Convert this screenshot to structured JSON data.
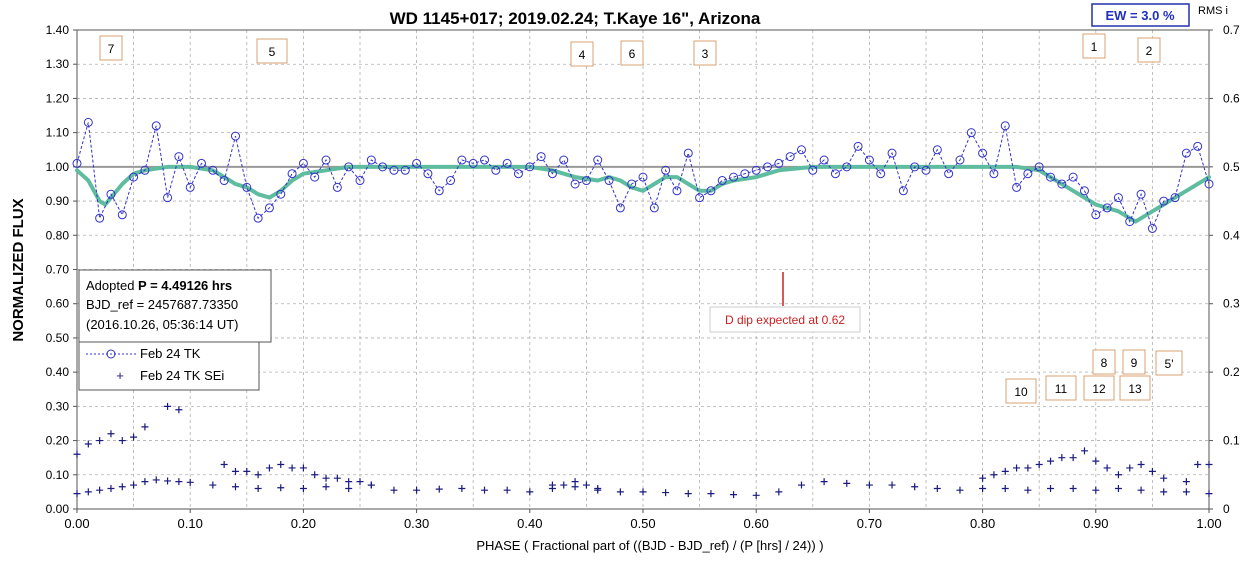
{
  "chart_data": {
    "type": "scatter",
    "title": "WD 1145+017; 2019.02.24; T.Kaye 16\", Arizona",
    "xlabel": "PHASE ( Fractional part of ((BJD - BJD_ref) / (P [hrs] / 24)) )",
    "ylabel": "NORMALIZED FLUX",
    "y2label": "RMS i",
    "xlim": [
      0,
      1
    ],
    "ylim": [
      0,
      1.4
    ],
    "y2lim": [
      0,
      0.7
    ],
    "grid": true,
    "x_ticks": [
      "0.00",
      "0.10",
      "0.20",
      "0.30",
      "0.40",
      "0.50",
      "0.60",
      "0.70",
      "0.80",
      "0.90",
      "1.00"
    ],
    "y_ticks": [
      "0.00",
      "0.10",
      "0.20",
      "0.30",
      "0.40",
      "0.50",
      "0.60",
      "0.70",
      "0.80",
      "0.90",
      "1.00",
      "1.10",
      "1.20",
      "1.30",
      "1.40"
    ],
    "y2_ticks": [
      "0",
      "0.1",
      "0.2",
      "0.3",
      "0.4",
      "0.5",
      "0.6",
      "0.7"
    ],
    "ew_label": "EW =  3.0 %",
    "info_box": {
      "line1_prefix": "Adopted ",
      "line1_bold": "P = 4.49126 hrs",
      "line2": "BJD_ref = 2457687.73350",
      "line3": "(2016.10.26, 05:36:14 UT)"
    },
    "annotation": {
      "text": "D dip expected at 0.62",
      "x": 0.62
    },
    "dip_labels_upper": [
      "7",
      "5",
      "4",
      "6",
      "3",
      "1",
      "2"
    ],
    "dip_labels_lower": [
      "8",
      "9",
      "5'",
      "10",
      "11",
      "12",
      "13"
    ],
    "series": [
      {
        "name": "Feb 24 TK",
        "color": "#3333cc",
        "marker": "circle",
        "x": [
          0.0,
          0.01,
          0.02,
          0.03,
          0.04,
          0.05,
          0.06,
          0.07,
          0.08,
          0.09,
          0.1,
          0.11,
          0.12,
          0.13,
          0.14,
          0.15,
          0.16,
          0.17,
          0.18,
          0.19,
          0.2,
          0.21,
          0.22,
          0.23,
          0.24,
          0.25,
          0.26,
          0.27,
          0.28,
          0.29,
          0.3,
          0.31,
          0.32,
          0.33,
          0.34,
          0.35,
          0.36,
          0.37,
          0.38,
          0.39,
          0.4,
          0.41,
          0.42,
          0.43,
          0.44,
          0.45,
          0.46,
          0.47,
          0.48,
          0.49,
          0.5,
          0.51,
          0.52,
          0.53,
          0.54,
          0.55,
          0.56,
          0.57,
          0.58,
          0.59,
          0.6,
          0.61,
          0.62,
          0.63,
          0.64,
          0.65,
          0.66,
          0.67,
          0.68,
          0.69,
          0.7,
          0.71,
          0.72,
          0.73,
          0.74,
          0.75,
          0.76,
          0.77,
          0.78,
          0.79,
          0.8,
          0.81,
          0.82,
          0.83,
          0.84,
          0.85,
          0.86,
          0.87,
          0.88,
          0.89,
          0.9,
          0.91,
          0.92,
          0.93,
          0.94,
          0.95,
          0.96,
          0.97,
          0.98,
          0.99,
          1.0
        ],
        "y": [
          1.01,
          1.13,
          0.85,
          0.92,
          0.86,
          0.97,
          0.99,
          1.12,
          0.91,
          1.03,
          0.94,
          1.01,
          0.99,
          0.96,
          1.09,
          0.94,
          0.85,
          0.88,
          0.92,
          0.98,
          1.01,
          0.97,
          1.02,
          0.94,
          1.0,
          0.96,
          1.02,
          1.0,
          0.99,
          0.99,
          1.01,
          0.98,
          0.93,
          0.96,
          1.02,
          1.01,
          1.02,
          0.99,
          1.01,
          0.98,
          1.0,
          1.03,
          0.98,
          1.02,
          0.95,
          0.96,
          1.02,
          0.96,
          0.88,
          0.95,
          0.97,
          0.88,
          0.99,
          0.93,
          1.04,
          0.91,
          0.93,
          0.96,
          0.97,
          0.98,
          0.99,
          1.0,
          1.01,
          1.03,
          1.05,
          0.99,
          1.02,
          0.98,
          1.0,
          1.06,
          1.02,
          0.98,
          1.04,
          0.93,
          1.0,
          0.99,
          1.05,
          0.98,
          1.02,
          1.1,
          1.04,
          0.98,
          1.12,
          0.94,
          0.98,
          1.0,
          0.97,
          0.95,
          0.97,
          0.93,
          0.86,
          0.88,
          0.91,
          0.84,
          0.92,
          0.82,
          0.9,
          0.91,
          1.04,
          1.06,
          0.95
        ]
      },
      {
        "name": "",
        "color": "#5ebd9e",
        "marker": "none",
        "x": [
          0.0,
          0.01,
          0.02,
          0.025,
          0.03,
          0.04,
          0.05,
          0.06,
          0.08,
          0.1,
          0.12,
          0.13,
          0.14,
          0.15,
          0.16,
          0.17,
          0.18,
          0.19,
          0.2,
          0.22,
          0.24,
          0.26,
          0.3,
          0.35,
          0.4,
          0.42,
          0.44,
          0.46,
          0.47,
          0.48,
          0.49,
          0.5,
          0.51,
          0.52,
          0.53,
          0.54,
          0.55,
          0.56,
          0.57,
          0.58,
          0.6,
          0.62,
          0.65,
          0.7,
          0.75,
          0.8,
          0.83,
          0.85,
          0.86,
          0.87,
          0.88,
          0.89,
          0.9,
          0.91,
          0.92,
          0.93,
          0.935,
          0.94,
          0.95,
          0.96,
          0.97,
          0.98,
          0.99,
          1.0
        ],
        "y": [
          0.99,
          0.96,
          0.9,
          0.89,
          0.91,
          0.95,
          0.98,
          0.99,
          1.0,
          1.0,
          0.99,
          0.97,
          0.95,
          0.94,
          0.92,
          0.91,
          0.93,
          0.96,
          0.98,
          0.99,
          1.0,
          1.0,
          1.0,
          1.0,
          1.0,
          0.99,
          0.97,
          0.96,
          0.97,
          0.96,
          0.94,
          0.93,
          0.95,
          0.97,
          0.97,
          0.95,
          0.93,
          0.93,
          0.95,
          0.96,
          0.97,
          0.99,
          1.0,
          1.0,
          1.0,
          1.0,
          1.0,
          0.99,
          0.97,
          0.95,
          0.93,
          0.91,
          0.89,
          0.88,
          0.87,
          0.85,
          0.84,
          0.85,
          0.87,
          0.89,
          0.91,
          0.93,
          0.95,
          0.97
        ]
      },
      {
        "name": "Feb 24 TK SEi",
        "color": "#1a1a80",
        "marker": "plus",
        "x": [
          0.0,
          0.01,
          0.02,
          0.03,
          0.04,
          0.05,
          0.06,
          0.07,
          0.08,
          0.09,
          0.1,
          0.12,
          0.14,
          0.16,
          0.18,
          0.2,
          0.22,
          0.24,
          0.26,
          0.28,
          0.3,
          0.32,
          0.34,
          0.36,
          0.38,
          0.4,
          0.42,
          0.44,
          0.46,
          0.48,
          0.5,
          0.52,
          0.54,
          0.56,
          0.58,
          0.6,
          0.62,
          0.64,
          0.66,
          0.68,
          0.7,
          0.72,
          0.74,
          0.76,
          0.78,
          0.8,
          0.82,
          0.84,
          0.86,
          0.88,
          0.9,
          0.92,
          0.94,
          0.96,
          0.98,
          1.0
        ],
        "y": [
          0.045,
          0.05,
          0.055,
          0.06,
          0.065,
          0.07,
          0.08,
          0.085,
          0.082,
          0.08,
          0.078,
          0.07,
          0.065,
          0.06,
          0.062,
          0.06,
          0.065,
          0.06,
          0.07,
          0.055,
          0.055,
          0.058,
          0.06,
          0.055,
          0.055,
          0.05,
          0.06,
          0.065,
          0.055,
          0.05,
          0.05,
          0.048,
          0.045,
          0.045,
          0.042,
          0.04,
          0.05,
          0.07,
          0.08,
          0.075,
          0.07,
          0.07,
          0.065,
          0.06,
          0.055,
          0.06,
          0.06,
          0.055,
          0.06,
          0.06,
          0.055,
          0.06,
          0.055,
          0.05,
          0.05,
          0.045
        ]
      },
      {
        "name": "",
        "color": "#1a1a80",
        "marker": "plus",
        "x": [
          0.0,
          0.01,
          0.02,
          0.03,
          0.04,
          0.05,
          0.06,
          0.07,
          0.08,
          0.09,
          0.13,
          0.14,
          0.15,
          0.16,
          0.17,
          0.18,
          0.19,
          0.2,
          0.21,
          0.22,
          0.23,
          0.24,
          0.25,
          0.26,
          0.42,
          0.43,
          0.44,
          0.45,
          0.46,
          0.8,
          0.81,
          0.82,
          0.83,
          0.84,
          0.85,
          0.86,
          0.87,
          0.88,
          0.89,
          0.9,
          0.91,
          0.92,
          0.93,
          0.94,
          0.95,
          0.96,
          0.98,
          0.99,
          1.0
        ],
        "y": [
          0.16,
          0.19,
          0.2,
          0.22,
          0.2,
          0.21,
          0.24,
          0.36,
          0.3,
          0.29,
          0.13,
          0.11,
          0.11,
          0.1,
          0.12,
          0.13,
          0.12,
          0.12,
          0.1,
          0.09,
          0.09,
          0.08,
          0.08,
          0.07,
          0.07,
          0.07,
          0.08,
          0.07,
          0.06,
          0.09,
          0.1,
          0.11,
          0.12,
          0.12,
          0.13,
          0.14,
          0.15,
          0.15,
          0.17,
          0.14,
          0.12,
          0.1,
          0.12,
          0.13,
          0.11,
          0.09,
          0.08,
          0.13,
          0.13
        ]
      }
    ]
  }
}
